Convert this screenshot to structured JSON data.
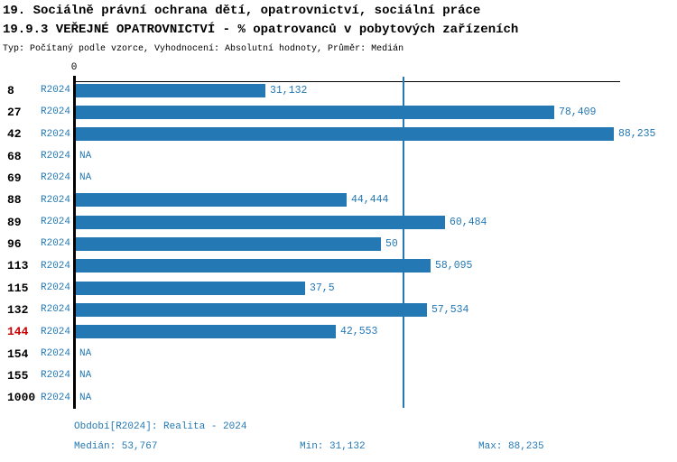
{
  "header": {
    "title_line1": "19. Sociálně právní ochrana dětí, opatrovnictví, sociální práce",
    "title_line2": "19.9.3 VEŘEJNÉ OPATROVNICTVÍ - % opatrovanců v pobytových zařízeních",
    "subtitle": "Typ: Počítaný podle vzorce, Vyhodnocení: Absolutní hodnoty, Průměr: Medián"
  },
  "colors": {
    "bar_blue": "#2478B4",
    "text_blue": "#2478B4",
    "highlight_red": "#CC0000",
    "axis_black": "#000000",
    "background": "#FFFFFF"
  },
  "chart_data": {
    "type": "bar",
    "orientation": "horizontal",
    "unit": "%",
    "title": "19.9.3 VEŘEJNÉ OPATROVNICTVÍ - % opatrovanců v pobytových zařízeních",
    "axis": {
      "origin_tick_label": "0",
      "xmin": 0,
      "xmax": 89.2,
      "median_line_value": 53.767,
      "grid": false
    },
    "categories": [
      "8",
      "27",
      "42",
      "68",
      "69",
      "88",
      "89",
      "96",
      "113",
      "115",
      "132",
      "144",
      "154",
      "155",
      "1000"
    ],
    "series_name": "R2024",
    "rows": [
      {
        "id": "8",
        "period": "R2024",
        "value": 31.132,
        "value_label": "31,132",
        "highlight": false
      },
      {
        "id": "27",
        "period": "R2024",
        "value": 78.409,
        "value_label": "78,409",
        "highlight": false
      },
      {
        "id": "42",
        "period": "R2024",
        "value": 88.235,
        "value_label": "88,235",
        "highlight": false
      },
      {
        "id": "68",
        "period": "R2024",
        "value": null,
        "value_label": "NA",
        "highlight": false
      },
      {
        "id": "69",
        "period": "R2024",
        "value": null,
        "value_label": "NA",
        "highlight": false
      },
      {
        "id": "88",
        "period": "R2024",
        "value": 44.444,
        "value_label": "44,444",
        "highlight": false
      },
      {
        "id": "89",
        "period": "R2024",
        "value": 60.484,
        "value_label": "60,484",
        "highlight": false
      },
      {
        "id": "96",
        "period": "R2024",
        "value": 50,
        "value_label": "50",
        "highlight": false
      },
      {
        "id": "113",
        "period": "R2024",
        "value": 58.095,
        "value_label": "58,095",
        "highlight": false
      },
      {
        "id": "115",
        "period": "R2024",
        "value": 37.5,
        "value_label": "37,5",
        "highlight": false
      },
      {
        "id": "132",
        "period": "R2024",
        "value": 57.534,
        "value_label": "57,534",
        "highlight": false
      },
      {
        "id": "144",
        "period": "R2024",
        "value": 42.553,
        "value_label": "42,553",
        "highlight": true
      },
      {
        "id": "154",
        "period": "R2024",
        "value": null,
        "value_label": "NA",
        "highlight": false
      },
      {
        "id": "155",
        "period": "R2024",
        "value": null,
        "value_label": "NA",
        "highlight": false
      },
      {
        "id": "1000",
        "period": "R2024",
        "value": null,
        "value_label": "NA",
        "highlight": false
      }
    ],
    "stats": {
      "median": 53.767,
      "min": 31.132,
      "max": 88.235
    }
  },
  "footer": {
    "period_line": "Období[R2024]: Realita - 2024",
    "median_label": "Medián: 53,767",
    "min_label": "Min: 31,132",
    "max_label": "Max: 88,235"
  }
}
